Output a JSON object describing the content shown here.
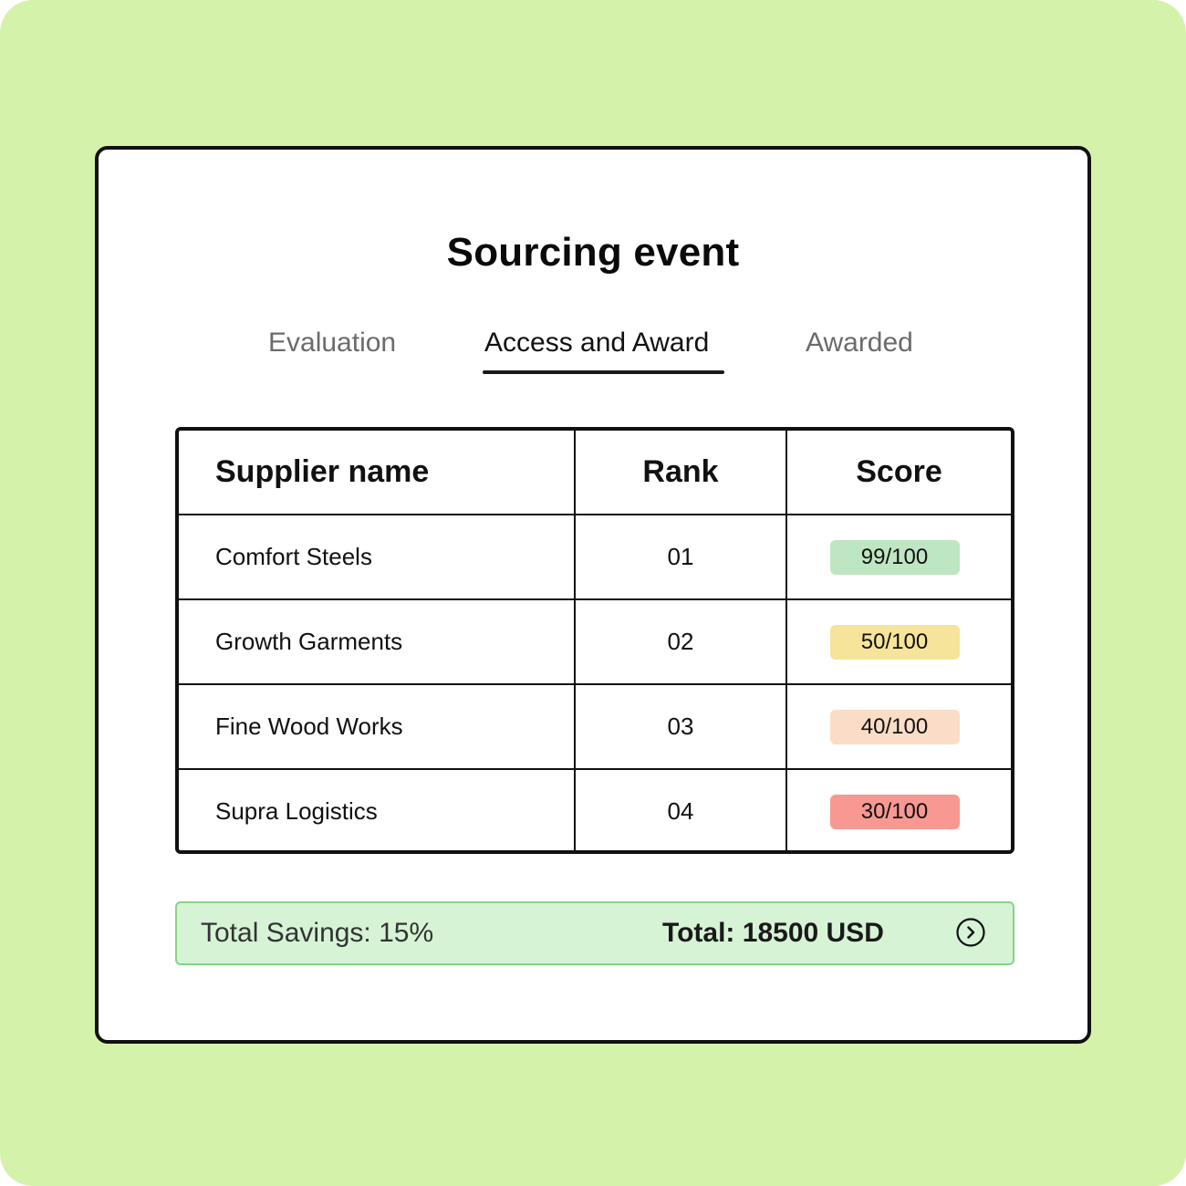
{
  "page": {
    "title": "Sourcing event"
  },
  "tabs": [
    {
      "label": "Evaluation",
      "active": false
    },
    {
      "label": "Access and Award",
      "active": true
    },
    {
      "label": "Awarded",
      "active": false
    }
  ],
  "table": {
    "headers": {
      "name": "Supplier name",
      "rank": "Rank",
      "score": "Score"
    },
    "rows": [
      {
        "name": "Comfort Steels",
        "rank": "01",
        "score": "99/100",
        "score_color": "#bfe6c2"
      },
      {
        "name": "Growth Garments",
        "rank": "02",
        "score": "50/100",
        "score_color": "#f6e49a"
      },
      {
        "name": "Fine Wood Works",
        "rank": "03",
        "score": "40/100",
        "score_color": "#fbdcc6"
      },
      {
        "name": "Supra Logistics",
        "rank": "04",
        "score": "30/100",
        "score_color": "#f79892"
      }
    ]
  },
  "footer": {
    "savings": "Total Savings: 15%",
    "total": "Total: 18500 USD",
    "action_icon": "chevron-right-circle-icon"
  },
  "colors": {
    "background": "#d5f2aa",
    "footer_bg": "#d6f3d6",
    "footer_border": "#86d486"
  }
}
